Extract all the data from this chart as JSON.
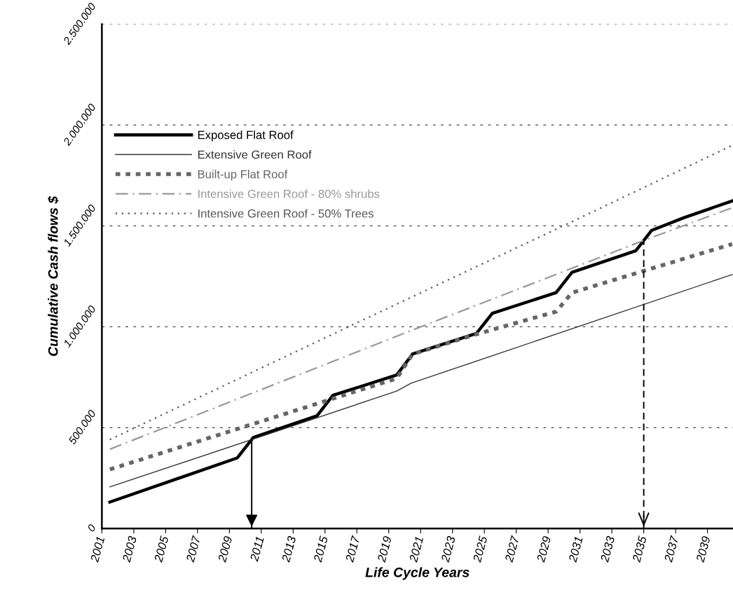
{
  "chart_data": {
    "type": "line",
    "xlabel": "Life Cycle Years",
    "ylabel": "Cumulative Cash flows $",
    "series": [
      {
        "name": "Exposed Flat Roof",
        "color": "#000000",
        "line_style": "solid",
        "x": [
          2001.5,
          2009.5,
          2010.5,
          2014.5,
          2015.5,
          2019.5,
          2020.5,
          2024.5,
          2025.5,
          2029.5,
          2030.5,
          2034.5,
          2035.5,
          2037.5,
          2040.55
        ],
        "values": [
          131000,
          350000,
          451000,
          559000,
          660000,
          761000,
          865000,
          967000,
          1067000,
          1169000,
          1270000,
          1377000,
          1478000,
          1540000,
          1624000
        ]
      },
      {
        "name": "Extensive Green Roof",
        "color": "#333333",
        "line_style": "solid",
        "x": [
          2001.5,
          2019.5,
          2020.4,
          2040.55
        ],
        "values": [
          206000,
          681000,
          720000,
          1259000
        ]
      },
      {
        "name": "Built-up Flat Roof",
        "color": "#666666",
        "line_style": "dashed",
        "x": [
          2001.5,
          2019.5,
          2020.5,
          2024.5,
          2029.5,
          2030.5,
          2040.55
        ],
        "values": [
          293000,
          744000,
          865000,
          963000,
          1075000,
          1169000,
          1410000
        ]
      },
      {
        "name": "Intensive Green Roof - 80% shrubs",
        "color": "#999999",
        "line_style": "dashdot",
        "x": [
          2001.5,
          2020.5,
          2035,
          2040.55
        ],
        "values": [
          393000,
          984000,
          1428000,
          1590000
        ]
      },
      {
        "name": "Intensive Green Roof - 50% Trees",
        "color": "#555555",
        "line_style": "dotted",
        "x": [
          2001.5,
          2016.4,
          2030.1,
          2040.55
        ],
        "values": [
          441000,
          997000,
          1506000,
          1899000
        ]
      }
    ],
    "ref_lines": [
      {
        "axis": "x",
        "value": 2010.4,
        "line_style": "solid",
        "color": "#000000"
      },
      {
        "axis": "x",
        "value": 2035,
        "line_style": "dashed",
        "color": "#000000"
      }
    ],
    "xlim": [
      2001,
      2040.6
    ],
    "xticks": [
      2001,
      2003,
      2005,
      2007,
      2009,
      2011,
      2013,
      2015,
      2017,
      2019,
      2021,
      2023,
      2025,
      2027,
      2029,
      2031,
      2033,
      2035,
      2037,
      2039
    ],
    "ylim": [
      0,
      2500000
    ],
    "yticks": [
      {
        "value": 0,
        "label": "0"
      },
      {
        "value": 500000,
        "label": "500.000"
      },
      {
        "value": 1000000,
        "label": "1.000.000"
      },
      {
        "value": 1500000,
        "label": "1.500.000"
      },
      {
        "value": 2000000,
        "label": "2.000.000"
      },
      {
        "value": 2500000,
        "label": "2.500.000"
      }
    ],
    "grid": "y",
    "legend": "top left",
    "marker": "none"
  }
}
